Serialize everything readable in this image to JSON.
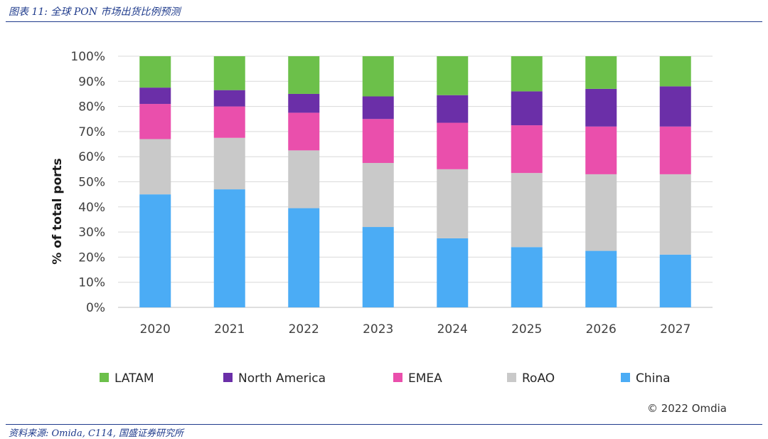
{
  "header": {
    "caption": "图表 11: 全球 PON 市场出货比例预测"
  },
  "footer": {
    "source": "资料来源: Omida, C114, 国盛证券研究所"
  },
  "chart_data": {
    "type": "bar",
    "stacked": true,
    "percent_stacked": true,
    "categories": [
      "2020",
      "2021",
      "2022",
      "2023",
      "2024",
      "2025",
      "2026",
      "2027"
    ],
    "series": [
      {
        "name": "China",
        "color": "#4BACF5",
        "values": [
          45,
          47,
          39.5,
          32,
          27.5,
          24,
          22.5,
          21
        ]
      },
      {
        "name": "RoAO",
        "color": "#C9C9C9",
        "values": [
          22,
          20.5,
          23,
          25.5,
          27.5,
          29.5,
          30.5,
          32
        ]
      },
      {
        "name": "EMEA",
        "color": "#EA4FAC",
        "values": [
          14,
          12.5,
          15,
          17.5,
          18.5,
          19,
          19,
          19
        ]
      },
      {
        "name": "North America",
        "color": "#6B2FA8",
        "values": [
          6.5,
          6.5,
          7.5,
          9,
          11,
          13.5,
          15,
          16
        ]
      },
      {
        "name": "LATAM",
        "color": "#6CC04A",
        "values": [
          12.5,
          13.5,
          15,
          16,
          15.5,
          14,
          13,
          12
        ]
      }
    ],
    "legend_order": [
      "LATAM",
      "North America",
      "EMEA",
      "RoAO",
      "China"
    ],
    "ylabel": "% of total ports",
    "yticks": [
      "0%",
      "10%",
      "20%",
      "30%",
      "40%",
      "50%",
      "60%",
      "70%",
      "80%",
      "90%",
      "100%"
    ],
    "ylim": [
      0,
      100
    ],
    "grid": true,
    "legend_position": "bottom",
    "copyright": "© 2022 Omdia"
  }
}
